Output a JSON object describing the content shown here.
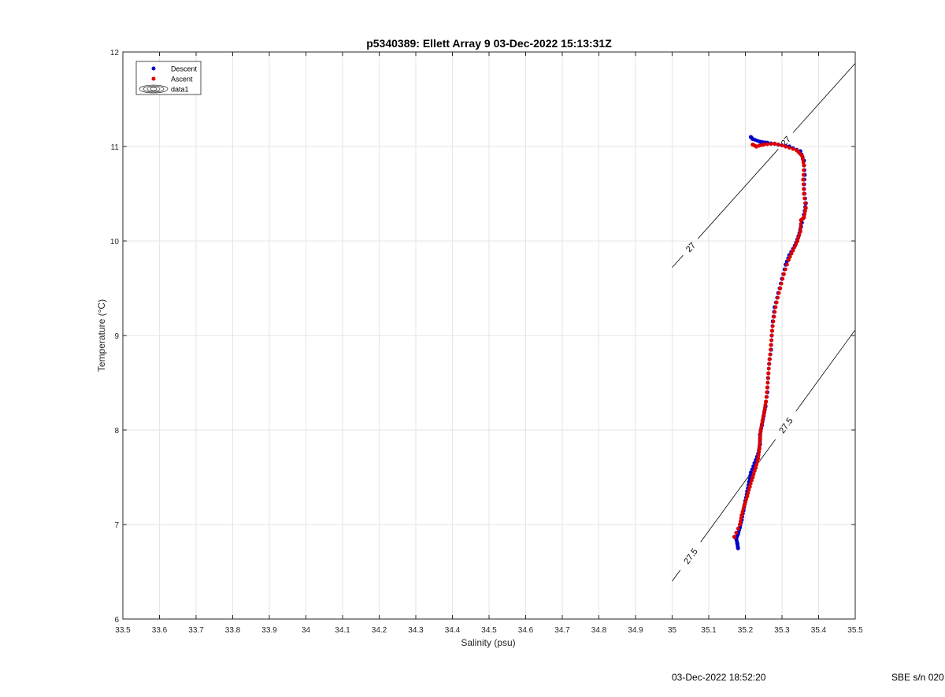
{
  "chart_data": {
    "type": "scatter",
    "title": "p5340389: Ellett Array 9 03-Dec-2022 15:13:31Z",
    "xlabel": "Salinity (psu)",
    "ylabel": "Temperature (°C)",
    "xlim": [
      33.5,
      35.5
    ],
    "ylim": [
      6,
      12
    ],
    "grid": true,
    "legend_position": "top-left",
    "x_ticks": [
      "33.5",
      "33.6",
      "33.7",
      "33.8",
      "33.9",
      "34",
      "34.1",
      "34.2",
      "34.3",
      "34.4",
      "34.5",
      "34.6",
      "34.7",
      "34.8",
      "34.9",
      "35",
      "35.1",
      "35.2",
      "35.3",
      "35.4",
      "35.5"
    ],
    "y_ticks": [
      "6",
      "7",
      "8",
      "9",
      "10",
      "11",
      "12"
    ],
    "legend": [
      {
        "label": "Descent",
        "marker": "dot",
        "color": "#0000cc"
      },
      {
        "label": "Ascent",
        "marker": "dot",
        "color": "#dd0000"
      },
      {
        "label": "data1",
        "marker": "contour",
        "color": "#000000"
      }
    ],
    "series": [
      {
        "name": "Descent",
        "color": "#0000cc",
        "points": [
          [
            35.18,
            6.75
          ],
          [
            35.178,
            6.8
          ],
          [
            35.175,
            6.85
          ],
          [
            35.18,
            6.9
          ],
          [
            35.185,
            6.97
          ],
          [
            35.19,
            7.05
          ],
          [
            35.195,
            7.15
          ],
          [
            35.2,
            7.25
          ],
          [
            35.205,
            7.35
          ],
          [
            35.21,
            7.45
          ],
          [
            35.215,
            7.55
          ],
          [
            35.225,
            7.65
          ],
          [
            35.235,
            7.75
          ],
          [
            35.24,
            7.85
          ],
          [
            35.24,
            7.95
          ],
          [
            35.245,
            8.05
          ],
          [
            35.25,
            8.15
          ],
          [
            35.255,
            8.25
          ],
          [
            35.26,
            8.4
          ],
          [
            35.262,
            8.55
          ],
          [
            35.265,
            8.7
          ],
          [
            35.27,
            8.85
          ],
          [
            35.272,
            9.0
          ],
          [
            35.275,
            9.15
          ],
          [
            35.28,
            9.3
          ],
          [
            35.29,
            9.45
          ],
          [
            35.3,
            9.6
          ],
          [
            35.31,
            9.75
          ],
          [
            35.32,
            9.85
          ],
          [
            35.335,
            9.95
          ],
          [
            35.345,
            10.05
          ],
          [
            35.352,
            10.15
          ],
          [
            35.36,
            10.28
          ],
          [
            35.365,
            10.4
          ],
          [
            35.36,
            10.55
          ],
          [
            35.362,
            10.7
          ],
          [
            35.36,
            10.85
          ],
          [
            35.35,
            10.95
          ],
          [
            35.32,
            11.0
          ],
          [
            35.29,
            11.02
          ],
          [
            35.26,
            11.04
          ],
          [
            35.24,
            11.05
          ],
          [
            35.22,
            11.08
          ],
          [
            35.215,
            11.1
          ]
        ]
      },
      {
        "name": "Ascent",
        "color": "#dd0000",
        "points": [
          [
            35.17,
            6.87
          ],
          [
            35.185,
            7.0
          ],
          [
            35.19,
            7.1
          ],
          [
            35.197,
            7.2
          ],
          [
            35.205,
            7.3
          ],
          [
            35.212,
            7.4
          ],
          [
            35.22,
            7.5
          ],
          [
            35.228,
            7.6
          ],
          [
            35.235,
            7.7
          ],
          [
            35.238,
            7.8
          ],
          [
            35.24,
            7.9
          ],
          [
            35.242,
            8.0
          ],
          [
            35.247,
            8.1
          ],
          [
            35.252,
            8.2
          ],
          [
            35.256,
            8.3
          ],
          [
            35.26,
            8.45
          ],
          [
            35.263,
            8.6
          ],
          [
            35.266,
            8.75
          ],
          [
            35.27,
            8.9
          ],
          [
            35.273,
            9.05
          ],
          [
            35.278,
            9.2
          ],
          [
            35.285,
            9.35
          ],
          [
            35.295,
            9.5
          ],
          [
            35.305,
            9.65
          ],
          [
            35.318,
            9.8
          ],
          [
            35.33,
            9.9
          ],
          [
            35.342,
            10.0
          ],
          [
            35.35,
            10.1
          ],
          [
            35.352,
            10.22
          ],
          [
            35.36,
            10.25
          ],
          [
            35.365,
            10.35
          ],
          [
            35.36,
            10.5
          ],
          [
            35.358,
            10.65
          ],
          [
            35.36,
            10.8
          ],
          [
            35.355,
            10.9
          ],
          [
            35.34,
            10.96
          ],
          [
            35.31,
            11.0
          ],
          [
            35.28,
            11.03
          ],
          [
            35.25,
            11.02
          ],
          [
            35.23,
            11.0
          ],
          [
            35.22,
            11.02
          ]
        ]
      }
    ],
    "isopycnals": [
      {
        "label": "27",
        "from": [
          35.0,
          9.72
        ],
        "to": [
          35.5,
          11.88
        ]
      },
      {
        "label": "27.5",
        "from": [
          35.0,
          6.4
        ],
        "to": [
          35.5,
          9.06
        ]
      }
    ]
  },
  "footer": {
    "timestamp": "03-Dec-2022 18:52:20",
    "serial": "SBE s/n 020"
  }
}
